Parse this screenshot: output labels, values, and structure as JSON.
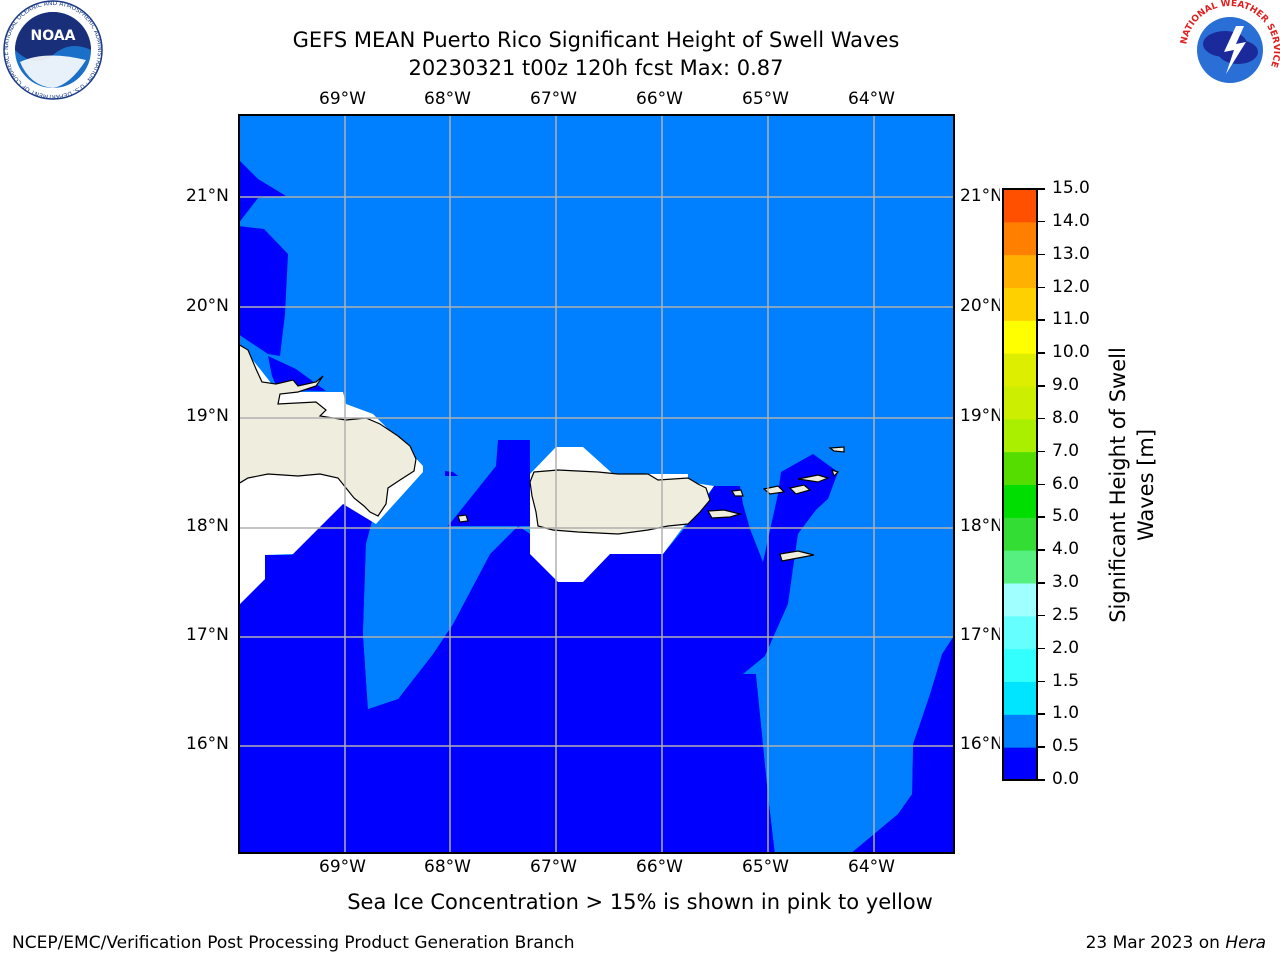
{
  "title": {
    "line1": "GEFS MEAN Puerto Rico Significant Height of Swell Waves",
    "line2": "20230321 t00z 120h fcst   Max: 0.87"
  },
  "map": {
    "lon_ticks": [
      "69°W",
      "68°W",
      "67°W",
      "66°W",
      "65°W",
      "64°W"
    ],
    "lat_ticks": [
      "21°N",
      "20°N",
      "19°N",
      "18°N",
      "17°N",
      "16°N"
    ],
    "colors": {
      "sea_low": "#0000ff",
      "sea_mid": "#0080ff",
      "land": "#efedde",
      "no_data": "#ffffff",
      "grid": "#b0b0b0"
    }
  },
  "colorbar": {
    "label_line1": "Significant Height of Swell",
    "label_line2": "Waves [m]",
    "levels": [
      "0.0",
      "0.5",
      "1.0",
      "1.5",
      "2.0",
      "2.5",
      "3.0",
      "4.0",
      "5.0",
      "6.0",
      "7.0",
      "8.0",
      "9.0",
      "10.0",
      "11.0",
      "12.0",
      "13.0",
      "14.0",
      "15.0"
    ],
    "colors": [
      "#0000ff",
      "#0080ff",
      "#00e5ff",
      "#33ffff",
      "#66ffff",
      "#a0ffff",
      "#55f080",
      "#33dd33",
      "#00dd00",
      "#55dd00",
      "#aaee00",
      "#ccee00",
      "#ddee00",
      "#ffff00",
      "#ffd000",
      "#ffb000",
      "#ff8000",
      "#ff5000",
      "#ff2800",
      "#ff0000"
    ]
  },
  "caption": "Sea Ice Concentration > 15% is shown in pink to yellow",
  "footer": {
    "left": "NCEP/EMC/Verification Post Processing Product Generation Branch",
    "right_prefix": "23 Mar 2023 on ",
    "right_host": "Hera"
  },
  "logos": {
    "noaa_text": "NOAA",
    "noaa_ring": "NATIONAL OCEANIC AND ATMOSPHERIC ADMINISTRATION · U.S. DEPARTMENT OF COMMERCE",
    "nws_ring": "NATIONAL WEATHER SERVICE"
  }
}
